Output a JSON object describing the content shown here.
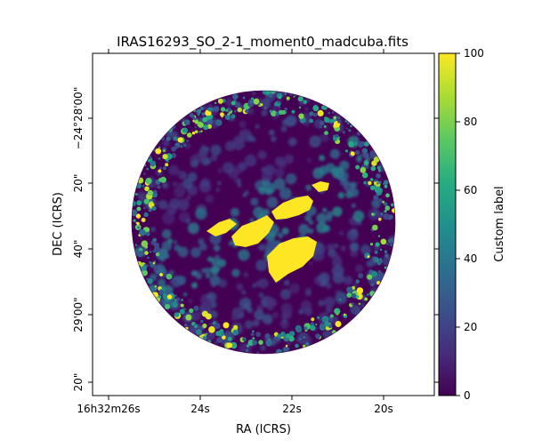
{
  "chart_data": {
    "type": "heatmap",
    "title": "IRAS16293_SO_2-1_moment0_madcuba.fits",
    "xlabel": "RA (ICRS)",
    "ylabel": "DEC (ICRS)",
    "colorbar_label": "Custom label",
    "colormap": "viridis",
    "clim": [
      0,
      100
    ],
    "colorbar_ticks": [
      "0",
      "20",
      "40",
      "60",
      "80",
      "100"
    ],
    "colorbar_tick_values": [
      0,
      20,
      40,
      60,
      80,
      100
    ],
    "x_ticks": [
      {
        "label": "16h32m26s",
        "ra_seconds": 26
      },
      {
        "label": "24s",
        "ra_seconds": 24
      },
      {
        "label": "22s",
        "ra_seconds": 22
      },
      {
        "label": "20s",
        "ra_seconds": 20
      }
    ],
    "y_ticks": [
      {
        "label": "−24°28'00\"",
        "dec_arcsec": 0
      },
      {
        "label": "20\"",
        "dec_arcsec": 20
      },
      {
        "label": "40\"",
        "dec_arcsec": 40
      },
      {
        "label": "29'00\"",
        "dec_arcsec": 60
      },
      {
        "label": "20\"",
        "dec_arcsec": 80
      }
    ],
    "features": [
      {
        "name": "background",
        "value": 5
      },
      {
        "name": "central-outflow-ne-lobe",
        "value": 100
      },
      {
        "name": "central-outflow-sw-lobe",
        "value": 100
      },
      {
        "name": "central-outflow-se-lobe",
        "value": 100
      },
      {
        "name": "diffuse-emission",
        "value": 30
      },
      {
        "name": "noisy-edge",
        "value": 45
      }
    ],
    "grid": false,
    "field_shape": "circle"
  }
}
